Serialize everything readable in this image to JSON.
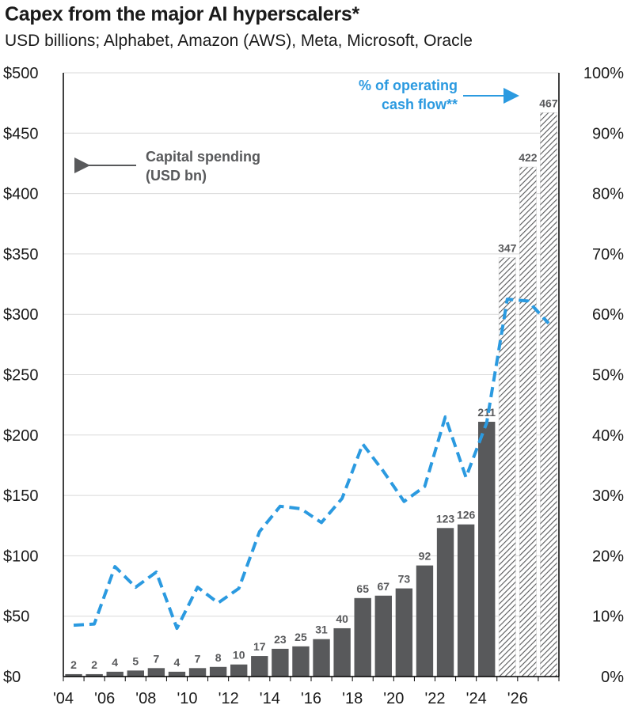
{
  "title": "Capex from the major AI hyperscalers*",
  "subtitle": "USD billions; Alphabet, Amazon (AWS), Meta, Microsoft, Oracle",
  "annotations": {
    "capex_line1": "Capital spending",
    "capex_line2": "(USD bn)",
    "ocf_line1": "% of operating",
    "ocf_line2": "cash flow**"
  },
  "colors": {
    "bar": "#58595b",
    "line": "#2b9ae0",
    "text": "#1a1a1a",
    "label": "#58595b"
  },
  "chart_data": {
    "type": "bar",
    "x": [
      2004,
      2005,
      2006,
      2007,
      2008,
      2009,
      2010,
      2011,
      2012,
      2013,
      2014,
      2015,
      2016,
      2017,
      2018,
      2019,
      2020,
      2021,
      2022,
      2023,
      2024,
      2025,
      2026,
      2027
    ],
    "x_tick_labels": [
      "'04",
      "'06",
      "'08",
      "'10",
      "'12",
      "'14",
      "'16",
      "'18",
      "'20",
      "'22",
      "'24",
      "'26"
    ],
    "x_tick_years": [
      2004,
      2006,
      2008,
      2010,
      2012,
      2014,
      2016,
      2018,
      2020,
      2022,
      2024,
      2026
    ],
    "series": [
      {
        "values": [
          2,
          2,
          4,
          5,
          7,
          4,
          7,
          8,
          10,
          17,
          23,
          25,
          31,
          40,
          65,
          67,
          73,
          92,
          123,
          126,
          211,
          347,
          422,
          467
        ],
        "data_labels": [
          "2",
          "2",
          "4",
          "5",
          "7",
          "4",
          "7",
          "8",
          "10",
          "17",
          "23",
          "25",
          "31",
          "40",
          "65",
          "67",
          "73",
          "92",
          "123",
          "126",
          "211",
          "347",
          "422",
          "467"
        ],
        "estimate_from": 2025,
        "axis": "left",
        "style": "bar"
      },
      {
        "name": "% of operating cash flow**",
        "values": [
          8.5,
          8.7,
          18.2,
          14.8,
          17.3,
          8.0,
          14.8,
          12.2,
          14.6,
          24.0,
          28.2,
          27.8,
          25.5,
          29.5,
          38.5,
          34.0,
          29.0,
          31.5,
          43.0,
          33.0,
          42.0,
          62.5,
          62.2,
          58.5
        ],
        "axis": "right",
        "style": "dashed-line"
      }
    ],
    "y_left": {
      "range": [
        0,
        500
      ],
      "ticks": [
        0,
        50,
        100,
        150,
        200,
        250,
        300,
        350,
        400,
        450,
        500
      ],
      "tick_labels": [
        "$0",
        "$50",
        "$100",
        "$150",
        "$200",
        "$250",
        "$300",
        "$350",
        "$400",
        "$450",
        "$500"
      ]
    },
    "y_right": {
      "range": [
        0,
        100
      ],
      "ticks": [
        0,
        10,
        20,
        30,
        40,
        50,
        60,
        70,
        80,
        90,
        100
      ],
      "tick_labels": [
        "0%",
        "10%",
        "20%",
        "30%",
        "40%",
        "50%",
        "60%",
        "70%",
        "80%",
        "90%",
        "100%"
      ]
    },
    "grid": "horizontal",
    "legend": "none"
  }
}
